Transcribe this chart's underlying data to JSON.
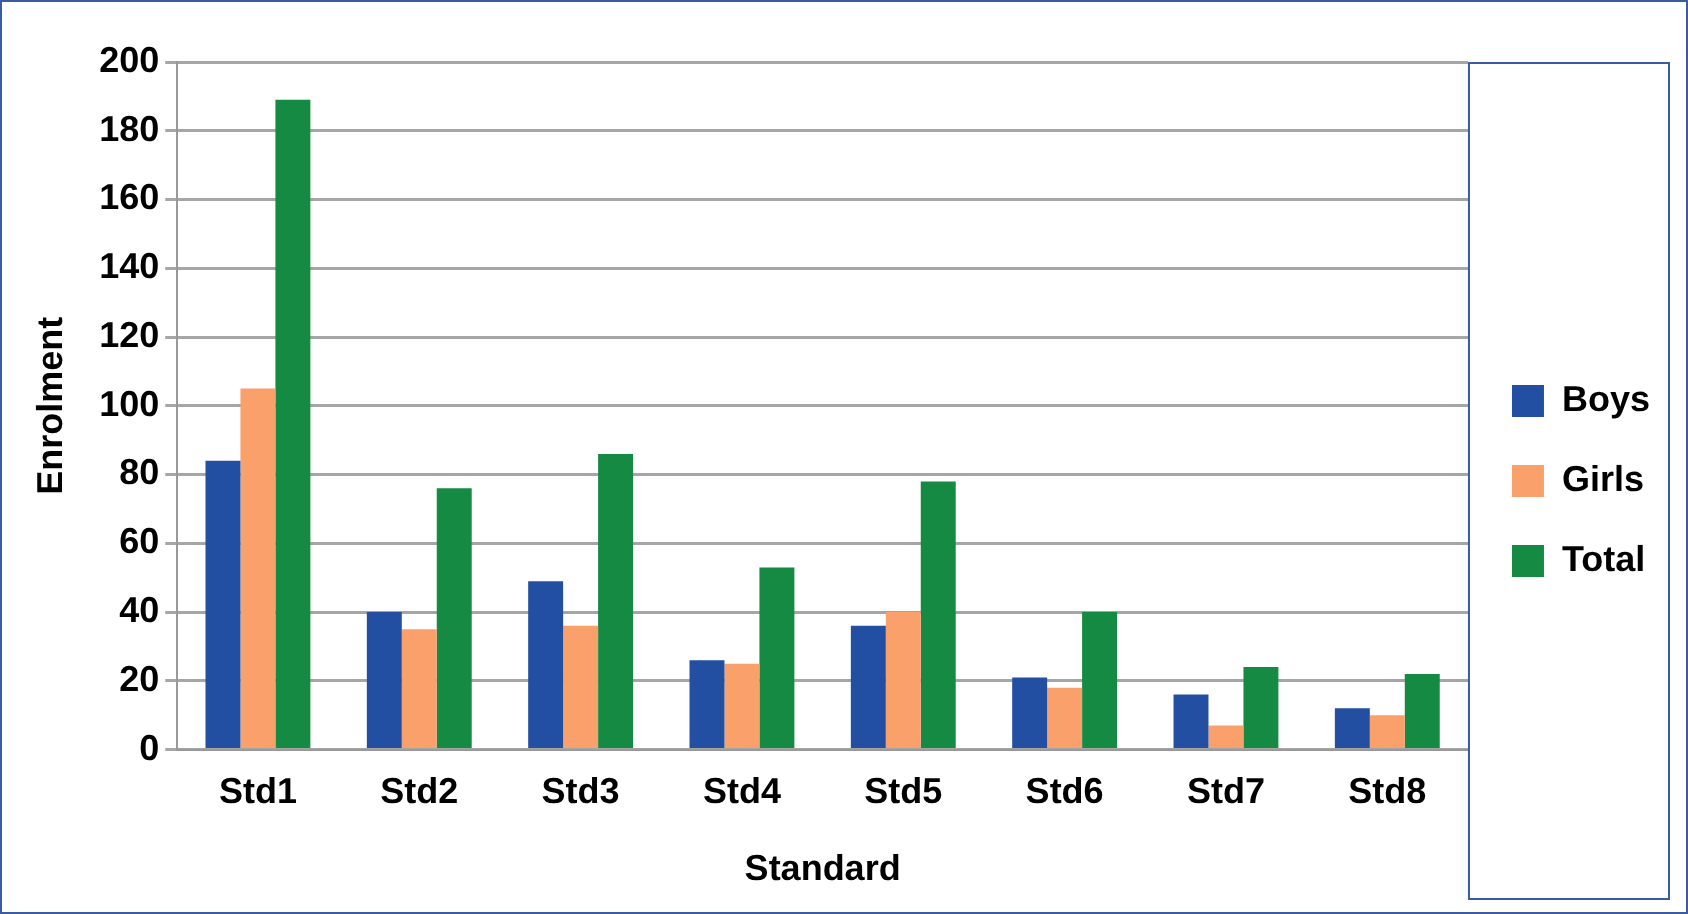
{
  "chart_data": {
    "type": "bar",
    "xlabel": "Standard",
    "ylabel": "Enrolment",
    "categories": [
      "Std1",
      "Std2",
      "Std3",
      "Std4",
      "Std5",
      "Std6",
      "Std7",
      "Std8"
    ],
    "series": [
      {
        "name": "Boys",
        "color": "#234fa3",
        "values": [
          84,
          40,
          49,
          26,
          36,
          21,
          16,
          12
        ]
      },
      {
        "name": "Girls",
        "color": "#f9a06b",
        "values": [
          105,
          35,
          36,
          25,
          40,
          18,
          7,
          10
        ]
      },
      {
        "name": "Total",
        "color": "#158a43",
        "values": [
          189,
          76,
          86,
          53,
          78,
          40,
          24,
          22
        ]
      }
    ],
    "ylim": [
      0,
      200
    ],
    "yticks": [
      0,
      20,
      40,
      60,
      80,
      100,
      120,
      140,
      160,
      180,
      200
    ],
    "grid": "y",
    "legend": "right"
  }
}
